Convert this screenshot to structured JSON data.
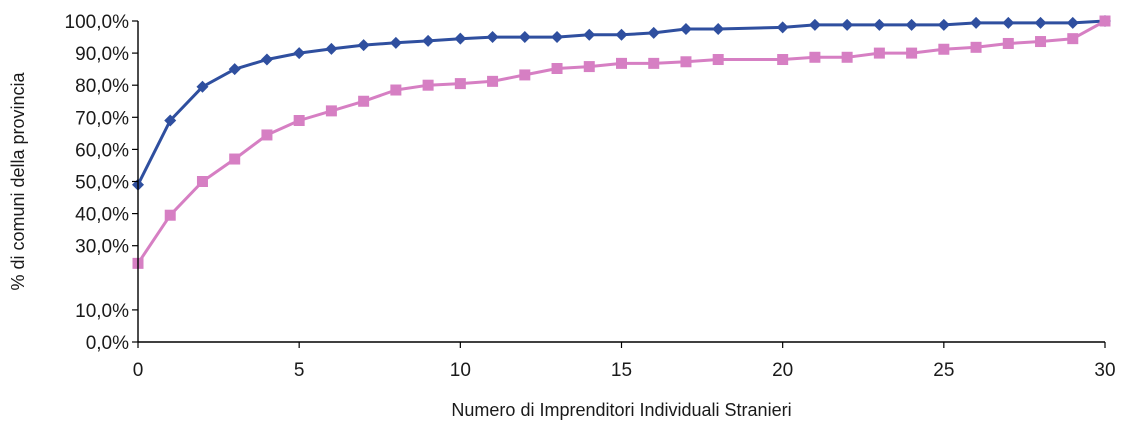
{
  "chart_data": {
    "type": "line",
    "title": "",
    "xlabel": "Numero di Imprenditori Individuali Stranieri",
    "ylabel": "% di comuni della provincia",
    "xlim": [
      0,
      30
    ],
    "ylim": [
      0,
      100
    ],
    "x_ticks": [
      0,
      5,
      10,
      15,
      20,
      25,
      30
    ],
    "x_tick_labels": [
      "0",
      "5",
      "10",
      "15",
      "20",
      "25",
      "30"
    ],
    "y_ticks": [
      0,
      10,
      30,
      40,
      50,
      60,
      70,
      80,
      90,
      100
    ],
    "y_tick_labels": [
      "0,0%",
      "10,0%",
      "30,0%",
      "40,0%",
      "50,0%",
      "60,0%",
      "70,0%",
      "80,0%",
      "90,0%",
      "100,0%"
    ],
    "grid": false,
    "legend": "none",
    "series": [
      {
        "color": "#2f4f9f",
        "marker": "diamond",
        "points": [
          [
            0,
            49.0
          ],
          [
            1,
            69.0
          ],
          [
            2,
            79.5
          ],
          [
            3,
            85.0
          ],
          [
            4,
            88.0
          ],
          [
            5,
            90.0
          ],
          [
            6,
            91.3
          ],
          [
            7,
            92.5
          ],
          [
            8,
            93.2
          ],
          [
            9,
            93.8
          ],
          [
            10,
            94.5
          ],
          [
            11,
            95.0
          ],
          [
            12,
            95.0
          ],
          [
            13,
            95.0
          ],
          [
            14,
            95.7
          ],
          [
            15,
            95.7
          ],
          [
            16,
            96.3
          ],
          [
            17,
            97.5
          ],
          [
            18,
            97.5
          ],
          [
            20,
            98.0
          ],
          [
            21,
            98.8
          ],
          [
            22,
            98.8
          ],
          [
            23,
            98.8
          ],
          [
            24,
            98.8
          ],
          [
            25,
            98.8
          ],
          [
            26,
            99.4
          ],
          [
            27,
            99.4
          ],
          [
            28,
            99.4
          ],
          [
            29,
            99.4
          ],
          [
            30,
            100.0
          ]
        ]
      },
      {
        "color": "#d67fc3",
        "marker": "square",
        "points": [
          [
            0,
            24.5
          ],
          [
            1,
            39.5
          ],
          [
            2,
            50.0
          ],
          [
            3,
            57.0
          ],
          [
            4,
            64.5
          ],
          [
            5,
            69.0
          ],
          [
            6,
            72.0
          ],
          [
            7,
            75.0
          ],
          [
            8,
            78.5
          ],
          [
            9,
            80.0
          ],
          [
            10,
            80.5
          ],
          [
            11,
            81.2
          ],
          [
            12,
            83.2
          ],
          [
            13,
            85.2
          ],
          [
            14,
            85.8
          ],
          [
            15,
            86.8
          ],
          [
            16,
            86.8
          ],
          [
            17,
            87.3
          ],
          [
            18,
            88.0
          ],
          [
            20,
            88.0
          ],
          [
            21,
            88.7
          ],
          [
            22,
            88.7
          ],
          [
            23,
            90.0
          ],
          [
            24,
            90.0
          ],
          [
            25,
            91.2
          ],
          [
            26,
            91.8
          ],
          [
            27,
            93.0
          ],
          [
            28,
            93.6
          ],
          [
            29,
            94.5
          ],
          [
            30,
            100.0
          ]
        ]
      }
    ]
  }
}
